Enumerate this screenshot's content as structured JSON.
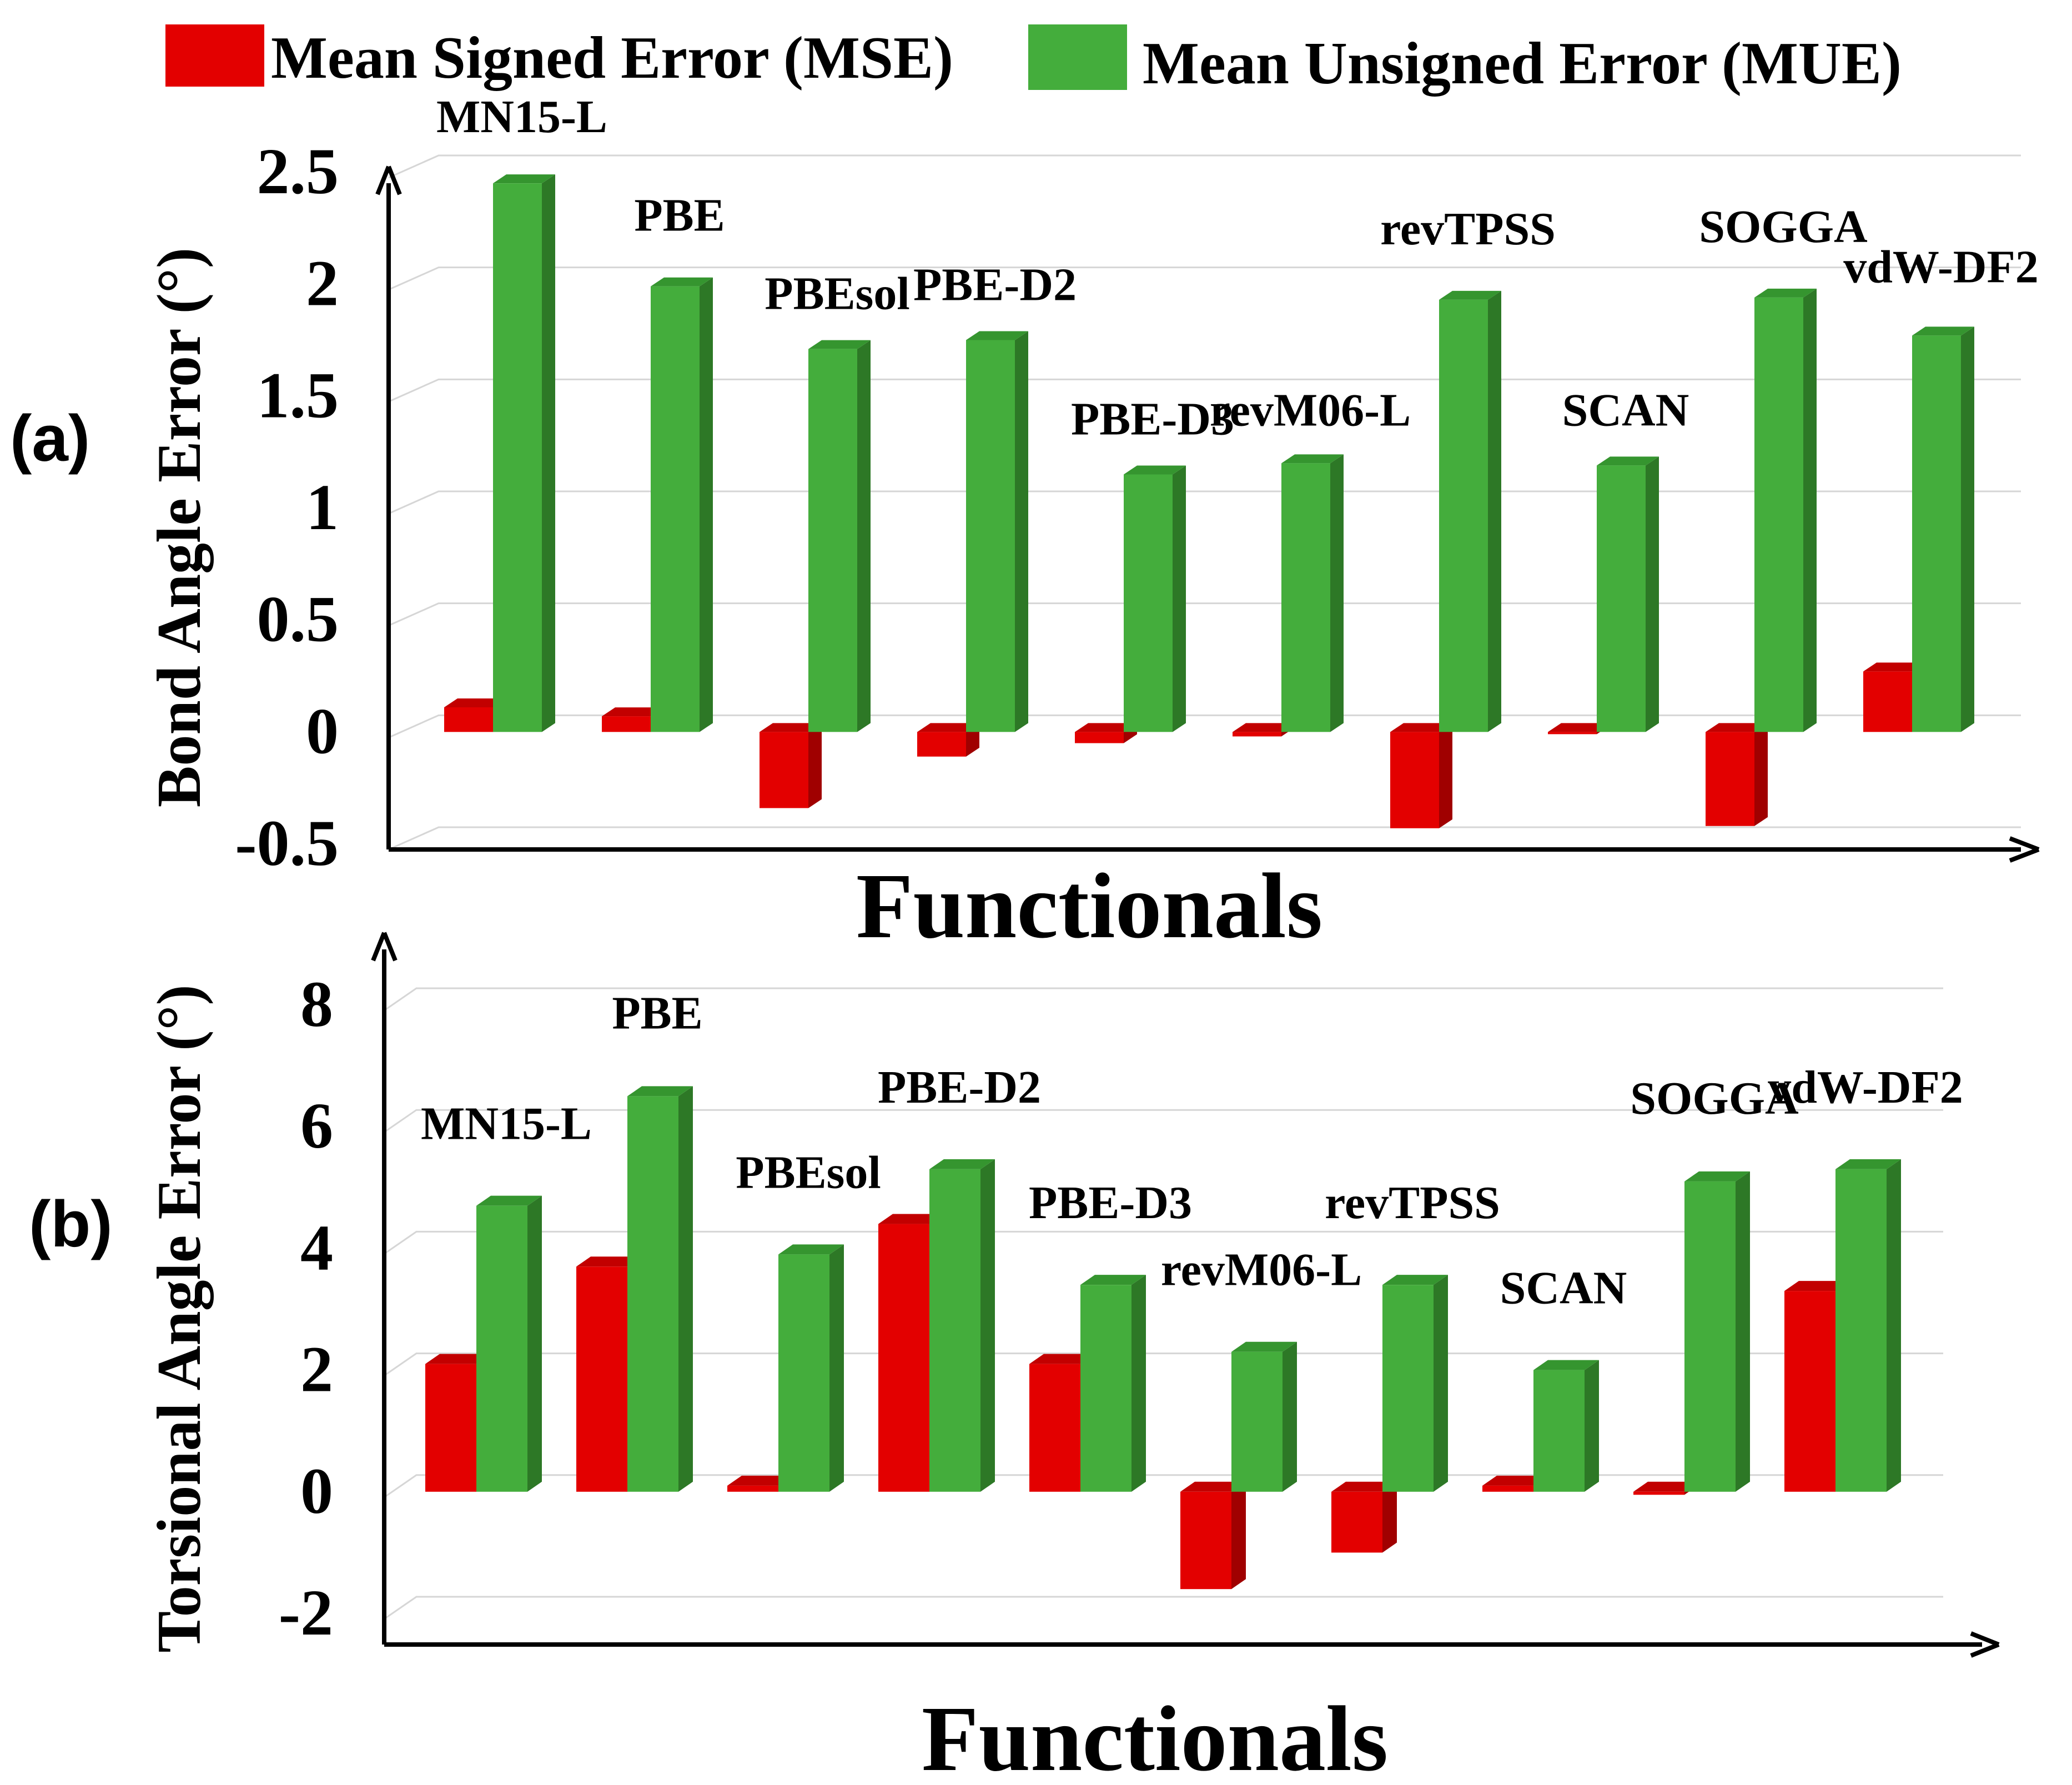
{
  "legend": {
    "mse_label": "Mean Signed Error (MSE)",
    "mue_label": "Mean Unsigned Error (MUE)"
  },
  "colors": {
    "mse_front": "#e30000",
    "mse_top": "#c20000",
    "mse_side": "#a00000",
    "mue_front": "#44ad3c",
    "mue_top": "#35952f",
    "mue_side": "#2d7826",
    "grid": "#d6d6d6",
    "axis": "#000000"
  },
  "chart_data": [
    {
      "type": "bar",
      "panel_label": "(a)",
      "ylabel": "Bond Angle Error (°)",
      "xlabel": "Functionals",
      "ylim": [
        -0.5,
        2.5
      ],
      "yticks": [
        "2.5",
        "2",
        "1.5",
        "1",
        "0.5",
        "0",
        "-0.5"
      ],
      "ytick_values": [
        2.5,
        2,
        1.5,
        1,
        0.5,
        0,
        -0.5
      ],
      "grid": true,
      "categories": [
        "MN15-L",
        "PBE",
        "PBEsol",
        "PBE-D2",
        "PBE-D3",
        "revM06-L",
        "revTPSS",
        "SCAN",
        "SOGGA",
        "vdW-DF2"
      ],
      "series": [
        {
          "name": "Mean Signed Error (MSE)",
          "values": [
            0.11,
            0.07,
            -0.34,
            -0.11,
            -0.05,
            -0.02,
            -0.43,
            0.0,
            -0.42,
            0.27
          ]
        },
        {
          "name": "Mean Unsigned Error (MUE)",
          "values": [
            2.45,
            1.99,
            1.71,
            1.75,
            1.15,
            1.2,
            1.93,
            1.19,
            1.94,
            1.77
          ]
        }
      ]
    },
    {
      "type": "bar",
      "panel_label": "(b)",
      "ylabel": "Torsional Angle Error (°)",
      "xlabel": "Functionals",
      "ylim": [
        -2,
        8
      ],
      "yticks": [
        "8",
        "6",
        "4",
        "2",
        "0",
        "-2"
      ],
      "ytick_values": [
        8,
        6,
        4,
        2,
        0,
        -2
      ],
      "grid": true,
      "categories": [
        "MN15-L",
        "PBE",
        "PBEsol",
        "PBE-D2",
        "PBE-D3",
        "revM06-L",
        "revTPSS",
        "SCAN",
        "SOGGA",
        "vdW-DF2"
      ],
      "series": [
        {
          "name": "Mean Signed Error (MSE)",
          "values": [
            2.1,
            3.7,
            0.1,
            4.4,
            2.1,
            -1.6,
            -1.0,
            0.1,
            -0.05,
            3.3
          ]
        },
        {
          "name": "Mean Unsigned Error (MUE)",
          "values": [
            4.7,
            6.5,
            3.9,
            5.3,
            3.4,
            2.3,
            3.4,
            2.0,
            5.1,
            5.3
          ]
        }
      ]
    }
  ]
}
